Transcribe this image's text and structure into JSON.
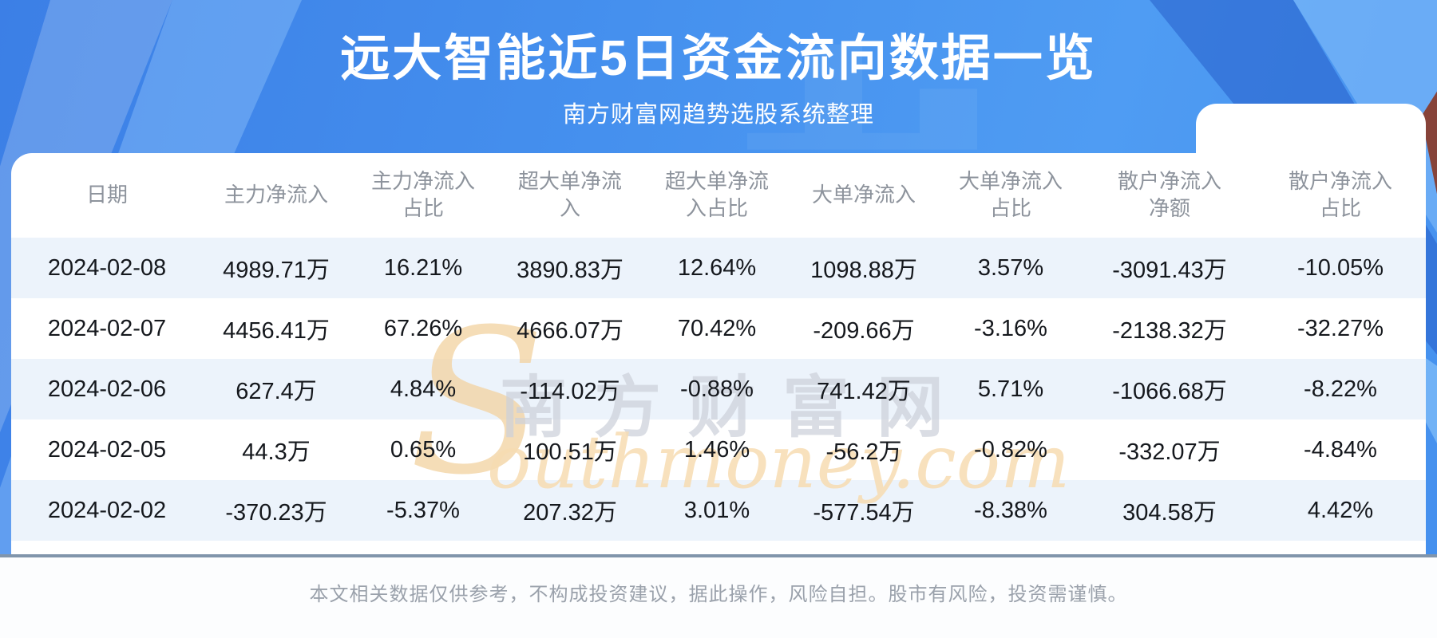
{
  "banner": {
    "title": "远大智能近5日资金流向数据一览",
    "subtitle": "南方财富网趋势选股系统整理"
  },
  "table": {
    "headers": [
      "日期",
      "主力净流入",
      "主力净流入\n占比",
      "超大单净流\n入",
      "超大单净流\n入占比",
      "大单净流入",
      "大单净流入\n占比",
      "散户净流入\n净额",
      "散户净流入\n占比"
    ],
    "rows": [
      [
        "2024-02-08",
        "4989.71万",
        "16.21%",
        "3890.83万",
        "12.64%",
        "1098.88万",
        "3.57%",
        "-3091.43万",
        "-10.05%"
      ],
      [
        "2024-02-07",
        "4456.41万",
        "67.26%",
        "4666.07万",
        "70.42%",
        "-209.66万",
        "-3.16%",
        "-2138.32万",
        "-32.27%"
      ],
      [
        "2024-02-06",
        "627.4万",
        "4.84%",
        "-114.02万",
        "-0.88%",
        "741.42万",
        "5.71%",
        "-1066.68万",
        "-8.22%"
      ],
      [
        "2024-02-05",
        "44.3万",
        "0.65%",
        "100.51万",
        "1.46%",
        "-56.2万",
        "-0.82%",
        "-332.07万",
        "-4.84%"
      ],
      [
        "2024-02-02",
        "-370.23万",
        "-5.37%",
        "207.32万",
        "3.01%",
        "-577.54万",
        "-8.38%",
        "304.58万",
        "4.42%"
      ]
    ]
  },
  "watermark": {
    "cn": "南方财富网",
    "s": "S",
    "en": "outhmoney.com"
  },
  "footer": {
    "disclaimer": "本文相关数据仅供参考，不构成投资建议，据此操作，风险自担。股市有风险，投资需谨慎。"
  },
  "colors": {
    "banner_blue": "#4590ee",
    "stripe": "#ecf3fb",
    "header_text": "#8d939c",
    "body_text": "#15181d",
    "divider": "#8195ab",
    "watermark_gray": "#cdd1da",
    "watermark_tan": "#f7dcb2",
    "red_sliver": "#8c3018"
  },
  "chart_data": {
    "type": "table",
    "title": "远大智能近5日资金流向数据一览",
    "subtitle": "南方财富网趋势选股系统整理",
    "columns": [
      "日期",
      "主力净流入(万)",
      "主力净流入占比(%)",
      "超大单净流入(万)",
      "超大单净流入占比(%)",
      "大单净流入(万)",
      "大单净流入占比(%)",
      "散户净流入净额(万)",
      "散户净流入占比(%)"
    ],
    "rows": [
      [
        "2024-02-08",
        4989.71,
        16.21,
        3890.83,
        12.64,
        1098.88,
        3.57,
        -3091.43,
        -10.05
      ],
      [
        "2024-02-07",
        4456.41,
        67.26,
        4666.07,
        70.42,
        -209.66,
        -3.16,
        -2138.32,
        -32.27
      ],
      [
        "2024-02-06",
        627.4,
        4.84,
        -114.02,
        -0.88,
        741.42,
        5.71,
        -1066.68,
        -8.22
      ],
      [
        "2024-02-05",
        44.3,
        0.65,
        100.51,
        1.46,
        -56.2,
        -0.82,
        -332.07,
        -4.84
      ],
      [
        "2024-02-02",
        -370.23,
        -5.37,
        207.32,
        3.01,
        -577.54,
        -8.38,
        304.58,
        4.42
      ]
    ]
  }
}
